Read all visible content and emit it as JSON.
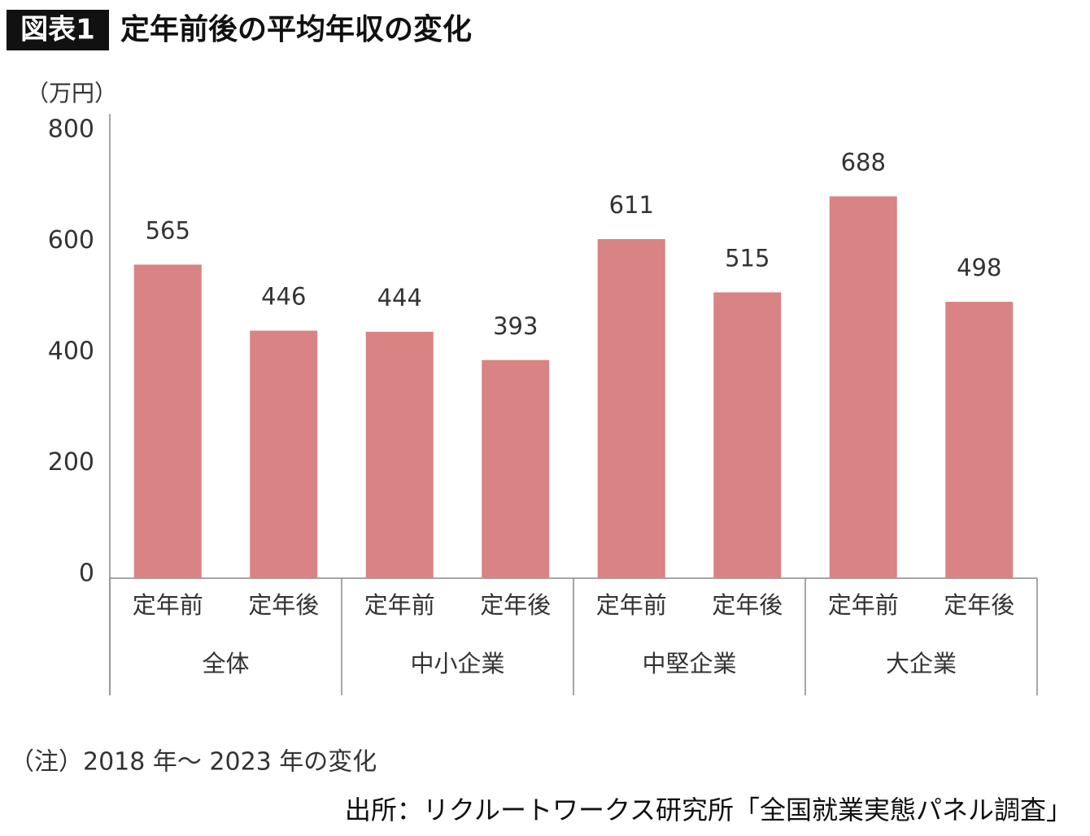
{
  "chart_data": {
    "type": "bar",
    "badge": "図表1",
    "title": "定年前後の平均年収の変化",
    "y_label": "（万円）",
    "categories": [
      "定年前",
      "定年後",
      "定年前",
      "定年後",
      "定年前",
      "定年後",
      "定年前",
      "定年後"
    ],
    "groups": [
      "全体",
      "中小企業",
      "中堅企業",
      "大企業"
    ],
    "values": [
      565,
      446,
      444,
      393,
      611,
      515,
      688,
      498
    ],
    "color": "#d98384",
    "ylim": [
      0,
      800
    ],
    "yticks": [
      0,
      200,
      400,
      600,
      800
    ],
    "grid": false,
    "note": "（注）2018 年～ 2023 年の変化",
    "source": "出所：リクルートワークス研究所「全国就業実態パネル調査」"
  }
}
